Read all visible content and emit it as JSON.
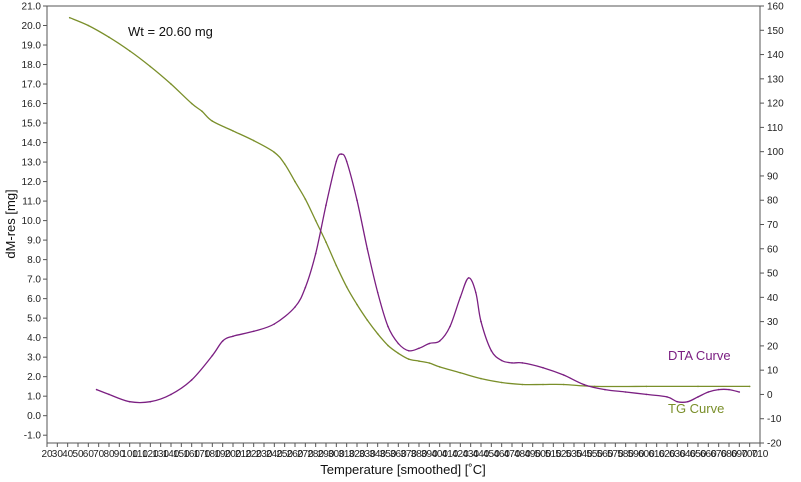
{
  "chart_data": {
    "type": "line",
    "annotation": "Wt = 20.60 mg",
    "xlabel": "Temperature [smoothed] [˚C]",
    "ylabel": "dM-res [mg]",
    "xlim": [
      20,
      710
    ],
    "ylim_left": [
      -1.4,
      21.0
    ],
    "ylim_right": [
      -20,
      160
    ],
    "x_ticks": [
      20,
      30,
      40,
      50,
      60,
      70,
      80,
      90,
      100,
      110,
      120,
      130,
      140,
      150,
      160,
      170,
      180,
      190,
      200,
      210,
      220,
      230,
      240,
      250,
      260,
      270,
      280,
      290,
      300,
      310,
      320,
      330,
      340,
      350,
      360,
      370,
      380,
      390,
      400,
      410,
      420,
      430,
      440,
      450,
      460,
      470,
      480,
      490,
      500,
      510,
      520,
      530,
      540,
      550,
      560,
      570,
      580,
      590,
      600,
      610,
      620,
      630,
      640,
      650,
      660,
      670,
      680,
      690,
      700,
      710
    ],
    "y_left_ticks": [
      "-1.0",
      "0.0",
      "1.0",
      "2.0",
      "3.0",
      "4.0",
      "5.0",
      "6.0",
      "7.0",
      "8.0",
      "9.0",
      "10.0",
      "11.0",
      "12.0",
      "13.0",
      "14.0",
      "15.0",
      "16.0",
      "17.0",
      "18.0",
      "19.0",
      "20.0",
      "21.0"
    ],
    "y_right_ticks": [
      -20,
      -10,
      0,
      10,
      20,
      30,
      40,
      50,
      60,
      70,
      80,
      90,
      100,
      110,
      120,
      130,
      140,
      150,
      160
    ],
    "series": [
      {
        "name": "TG Curve",
        "axis": "left",
        "color": "#7a8f2a",
        "x": [
          42,
          60,
          80,
          100,
          120,
          140,
          160,
          170,
          180,
          200,
          220,
          240,
          250,
          260,
          270,
          280,
          290,
          300,
          310,
          320,
          330,
          340,
          350,
          360,
          370,
          380,
          390,
          400,
          420,
          440,
          460,
          480,
          500,
          520,
          550,
          600,
          650,
          700
        ],
        "y": [
          20.4,
          20.0,
          19.4,
          18.7,
          17.9,
          17.0,
          16.0,
          15.6,
          15.1,
          14.6,
          14.1,
          13.5,
          12.9,
          12.0,
          11.1,
          10.0,
          8.9,
          7.7,
          6.6,
          5.7,
          4.9,
          4.2,
          3.6,
          3.2,
          2.9,
          2.8,
          2.7,
          2.5,
          2.2,
          1.9,
          1.7,
          1.6,
          1.6,
          1.6,
          1.5,
          1.5,
          1.5,
          1.5
        ]
      },
      {
        "name": "DTA Curve",
        "axis": "right",
        "color": "#7b1f82",
        "x": [
          68,
          80,
          100,
          120,
          140,
          160,
          180,
          190,
          200,
          220,
          240,
          260,
          270,
          280,
          290,
          300,
          305,
          310,
          320,
          330,
          340,
          350,
          360,
          370,
          380,
          390,
          400,
          410,
          420,
          428,
          435,
          440,
          450,
          460,
          470,
          480,
          500,
          520,
          540,
          560,
          580,
          600,
          620,
          630,
          640,
          650,
          660,
          670,
          680,
          690
        ],
        "y": [
          2,
          0,
          -3,
          -3,
          0,
          6,
          16,
          22,
          24,
          26,
          29,
          36,
          44,
          58,
          78,
          96,
          99,
          96,
          80,
          60,
          42,
          28,
          21,
          18,
          19,
          21,
          22,
          28,
          40,
          48,
          42,
          30,
          18,
          14,
          13,
          13,
          11,
          8,
          4,
          2,
          1,
          0,
          -1,
          -3,
          -3,
          -1,
          1,
          2,
          2,
          1
        ]
      }
    ]
  }
}
